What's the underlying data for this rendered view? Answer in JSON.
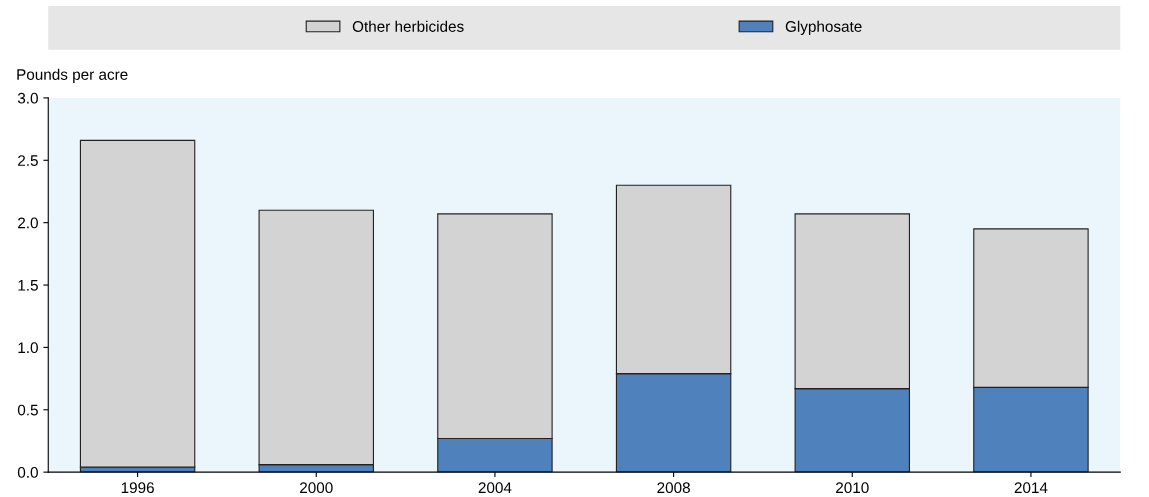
{
  "chart_data": {
    "type": "bar",
    "stacked": true,
    "ylabel": "Pounds per acre",
    "categories": [
      "1996",
      "2000",
      "2004",
      "2008",
      "2010",
      "2014"
    ],
    "series": [
      {
        "name": "Glyphosate",
        "color": "#4f81bd",
        "values": [
          0.04,
          0.06,
          0.27,
          0.79,
          0.67,
          0.68
        ]
      },
      {
        "name": "Other herbicides",
        "color": "#d3d3d3",
        "values": [
          2.62,
          2.04,
          1.8,
          1.51,
          1.4,
          1.27
        ]
      }
    ],
    "ylim": [
      0,
      3
    ],
    "yticks": [
      {
        "value": 0,
        "label": "0.0"
      },
      {
        "value": 0.5,
        "label": "0.5"
      },
      {
        "value": 1,
        "label": "1.0"
      },
      {
        "value": 1.5,
        "label": "1.5"
      },
      {
        "value": 2,
        "label": "2.0"
      },
      {
        "value": 2.5,
        "label": "2.5"
      },
      {
        "value": 3,
        "label": "3.0"
      }
    ],
    "grid": false,
    "legend": "top"
  }
}
